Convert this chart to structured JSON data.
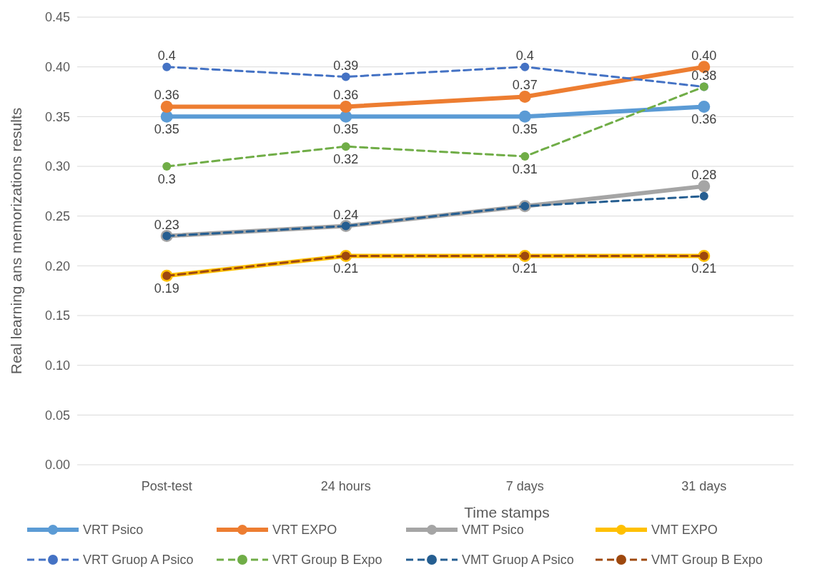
{
  "chart_data": {
    "type": "line",
    "xlabel": "Time stamps",
    "ylabel": "Real learning ans memorizations results",
    "categories": [
      "Post-test",
      "24 hours",
      "7 days",
      "31 days"
    ],
    "ylim": [
      0,
      0.45
    ],
    "yticks": [
      {
        "value": 0,
        "label": "0.00"
      },
      {
        "value": 0.05,
        "label": "0.05"
      },
      {
        "value": 0.1,
        "label": "0.10"
      },
      {
        "value": 0.15,
        "label": "0.15"
      },
      {
        "value": 0.2,
        "label": "0.20"
      },
      {
        "value": 0.25,
        "label": "0.25"
      },
      {
        "value": 0.3,
        "label": "0.30"
      },
      {
        "value": 0.35,
        "label": "0.35"
      },
      {
        "value": 0.4,
        "label": "0.40"
      },
      {
        "value": 0.45,
        "label": "0.45"
      }
    ],
    "grid": "y",
    "legend": "bottom",
    "marker": "circle",
    "series": [
      {
        "name": "VRT Psico",
        "color": "#5b9bd5",
        "line_style": "solid",
        "values": [
          0.35,
          0.35,
          0.35,
          0.36
        ],
        "value_labels": [
          "0.35",
          "0.35",
          "0.35",
          "0.36"
        ]
      },
      {
        "name": "VRT EXPO",
        "color": "#ed7d31",
        "line_style": "solid",
        "values": [
          0.36,
          0.36,
          0.37,
          0.4
        ],
        "value_labels": [
          "0.36",
          "0.36",
          "0.37",
          "0.40"
        ]
      },
      {
        "name": "VMT Psico",
        "color": "#a5a5a5",
        "line_style": "solid",
        "values": [
          0.23,
          0.24,
          0.26,
          0.28
        ],
        "value_labels": [
          "0.23",
          "0.24",
          null,
          "0.28"
        ]
      },
      {
        "name": "VMT EXPO",
        "color": "#ffc000",
        "line_style": "solid",
        "values": [
          0.19,
          0.21,
          0.21,
          0.21
        ],
        "value_labels": [
          "0.19",
          "0.21",
          "0.21",
          "0.21"
        ]
      },
      {
        "name": "VRT Gruop A Psico",
        "color": "#4472c4",
        "line_style": "dashed",
        "values": [
          0.4,
          0.39,
          0.4,
          0.38
        ],
        "value_labels": [
          "0.4",
          "0.39",
          "0.4",
          "0.38"
        ]
      },
      {
        "name": "VRT Group B Expo",
        "color": "#70ad47",
        "line_style": "dashed",
        "values": [
          0.3,
          0.32,
          0.31,
          0.38
        ],
        "value_labels": [
          "0.3",
          "0.32",
          "0.31",
          null
        ]
      },
      {
        "name": "VMT Gruop A Psico",
        "color": "#255e91",
        "line_style": "dashed",
        "values": [
          0.23,
          0.24,
          0.26,
          0.27
        ]
      },
      {
        "name": "VMT Group B Expo",
        "color": "#9e480e",
        "line_style": "dashed",
        "values": [
          0.19,
          0.21,
          0.21,
          0.21
        ]
      }
    ]
  }
}
